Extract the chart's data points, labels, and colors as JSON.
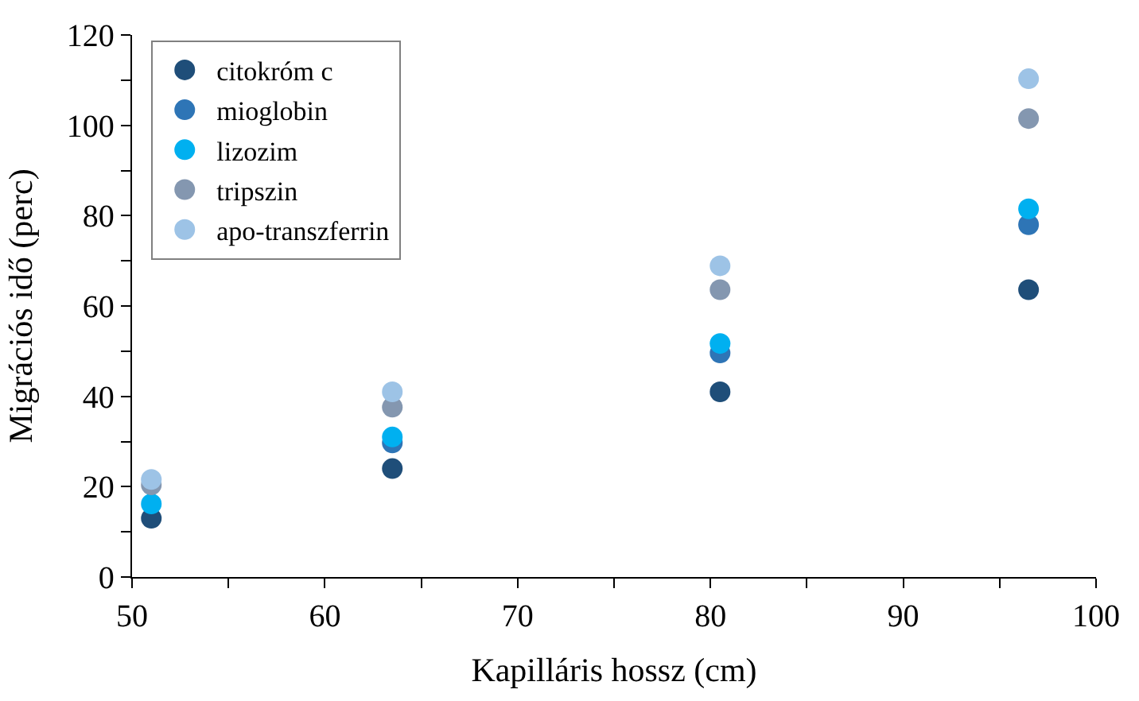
{
  "chart_data": {
    "type": "scatter",
    "xlabel": "Kapilláris hossz (cm)",
    "ylabel": "Migrációs idő (perc)",
    "x": [
      51,
      63.5,
      80.5,
      96.5
    ],
    "series": [
      {
        "name": "citokróm c",
        "color": "#1f4e79",
        "values": [
          13,
          24,
          41,
          63.6
        ]
      },
      {
        "name": "mioglobin",
        "color": "#2e75b6",
        "values": [
          null,
          29.7,
          49.6,
          78
        ]
      },
      {
        "name": "lizozim",
        "color": "#00b0f0",
        "values": [
          16.2,
          31,
          51.7,
          81.5
        ]
      },
      {
        "name": "tripszin",
        "color": "#8497b0",
        "values": [
          20.4,
          37.6,
          63.6,
          101.5
        ]
      },
      {
        "name": "apo-transzferrin",
        "color": "#9dc3e6",
        "values": [
          21.6,
          41,
          68.9,
          110.3
        ]
      }
    ],
    "xlim": [
      50,
      100
    ],
    "ylim": [
      0,
      120
    ],
    "xticks": [
      50,
      {
        "value": 55,
        "label": null
      },
      60,
      {
        "value": 65,
        "label": null
      },
      70,
      {
        "value": 75,
        "label": null
      },
      80,
      {
        "value": 85,
        "label": null
      },
      90,
      {
        "value": 95,
        "label": null
      },
      100
    ],
    "yticks": [
      0,
      {
        "value": 10,
        "label": null
      },
      20,
      {
        "value": 30,
        "label": null
      },
      40,
      {
        "value": 50,
        "label": null
      },
      60,
      {
        "value": 70,
        "label": null
      },
      80,
      {
        "value": 90,
        "label": null
      },
      100,
      {
        "value": 110,
        "label": null
      },
      120
    ],
    "legend": "top left",
    "marker": "circle"
  }
}
